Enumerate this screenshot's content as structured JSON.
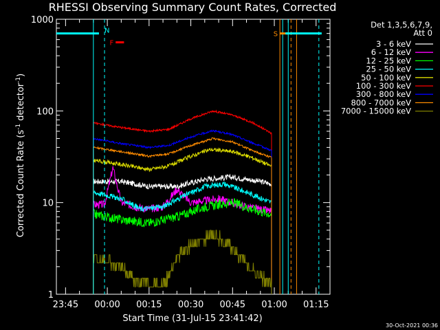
{
  "chart_data": {
    "type": "line",
    "title": "RHESSI Observing Summary Count Rates, Corrected",
    "xlabel": "Start Time (31-Jul-15 23:41:42)",
    "ylabel_main": "Corrected Count Rate (s",
    "ylabel_sup1": "-1",
    "ylabel_mid": " detector",
    "ylabel_sup2": "-1",
    "ylabel_end": ")",
    "y_scale": "log",
    "ylim": [
      1,
      1000
    ],
    "xlim": [
      "23:41:42",
      "01:20"
    ],
    "x_ticks": [
      "23:45",
      "00:00",
      "00:15",
      "00:30",
      "00:45",
      "01:00",
      "01:15"
    ],
    "y_ticks": [
      "1",
      "10",
      "100",
      "1000"
    ],
    "grid": false,
    "legend_position": "top-right",
    "legend_header": [
      "Det 1,3,5,6,7,9,",
      "Att 0"
    ],
    "series": [
      {
        "name": "3 - 6 keV",
        "color": "#ffffff",
        "start": "23:55",
        "end": "00:59",
        "points": [
          [
            "23:55",
            17
          ],
          [
            "00:05",
            17
          ],
          [
            "00:15",
            15
          ],
          [
            "00:25",
            15
          ],
          [
            "00:35",
            18
          ],
          [
            "00:45",
            19
          ],
          [
            "00:55",
            17
          ],
          [
            "00:59",
            16
          ]
        ]
      },
      {
        "name": "6 - 12 keV",
        "color": "#ff00ff",
        "start": "23:55",
        "end": "00:59",
        "points": [
          [
            "23:55",
            9.5
          ],
          [
            "23:59",
            9.5
          ],
          [
            "00:02",
            24
          ],
          [
            "00:05",
            10
          ],
          [
            "00:10",
            9
          ],
          [
            "00:15",
            8.5
          ],
          [
            "00:20",
            9
          ],
          [
            "00:25",
            14
          ],
          [
            "00:30",
            10
          ],
          [
            "00:40",
            11
          ],
          [
            "00:50",
            9
          ],
          [
            "00:59",
            8
          ]
        ]
      },
      {
        "name": "12 - 25 keV",
        "color": "#00ff00",
        "start": "23:55",
        "end": "00:59",
        "points": [
          [
            "23:55",
            7.5
          ],
          [
            "00:05",
            6.5
          ],
          [
            "00:15",
            6
          ],
          [
            "00:25",
            7
          ],
          [
            "00:35",
            9
          ],
          [
            "00:45",
            10
          ],
          [
            "00:55",
            8
          ],
          [
            "00:59",
            7.5
          ]
        ]
      },
      {
        "name": "25 - 50 keV",
        "color": "#00ffff",
        "start": "23:55",
        "end": "00:59",
        "points": [
          [
            "23:55",
            13
          ],
          [
            "00:00",
            12
          ],
          [
            "00:05",
            11
          ],
          [
            "00:12",
            8.5
          ],
          [
            "00:20",
            9
          ],
          [
            "00:28",
            12
          ],
          [
            "00:35",
            15
          ],
          [
            "00:42",
            16
          ],
          [
            "00:50",
            13
          ],
          [
            "00:59",
            10
          ]
        ]
      },
      {
        "name": "50 - 100 keV",
        "color": "#dddd00",
        "start": "23:55",
        "end": "00:59",
        "points": [
          [
            "23:55",
            29
          ],
          [
            "00:05",
            26
          ],
          [
            "00:15",
            23
          ],
          [
            "00:22",
            25
          ],
          [
            "00:30",
            32
          ],
          [
            "00:37",
            38
          ],
          [
            "00:45",
            36
          ],
          [
            "00:52",
            31
          ],
          [
            "00:59",
            25
          ]
        ]
      },
      {
        "name": "100 - 300 keV",
        "color": "#ff0000",
        "start": "23:55",
        "end": "00:59",
        "points": [
          [
            "23:55",
            74
          ],
          [
            "00:05",
            66
          ],
          [
            "00:15",
            60
          ],
          [
            "00:22",
            63
          ],
          [
            "00:30",
            82
          ],
          [
            "00:38",
            100
          ],
          [
            "00:45",
            90
          ],
          [
            "00:52",
            75
          ],
          [
            "00:59",
            57
          ]
        ]
      },
      {
        "name": "300 - 800 keV",
        "color": "#0000ff",
        "start": "23:55",
        "end": "00:59",
        "points": [
          [
            "23:55",
            50
          ],
          [
            "00:05",
            44
          ],
          [
            "00:15",
            40
          ],
          [
            "00:22",
            42
          ],
          [
            "00:30",
            52
          ],
          [
            "00:38",
            61
          ],
          [
            "00:45",
            55
          ],
          [
            "00:52",
            45
          ],
          [
            "00:59",
            37
          ]
        ]
      },
      {
        "name": "800 - 7000 keV",
        "color": "#ff8c00",
        "start": "23:55",
        "end": "00:59",
        "points": [
          [
            "23:55",
            40
          ],
          [
            "00:05",
            36
          ],
          [
            "00:15",
            32
          ],
          [
            "00:22",
            34
          ],
          [
            "00:30",
            42
          ],
          [
            "00:38",
            50
          ],
          [
            "00:45",
            46
          ],
          [
            "00:52",
            37
          ],
          [
            "00:59",
            31
          ]
        ]
      },
      {
        "name": "7000 - 15000 keV",
        "color": "#808000",
        "start": "23:55",
        "end": "00:59",
        "points": [
          [
            "23:55",
            2.5
          ],
          [
            "00:05",
            2
          ],
          [
            "00:10",
            1.4
          ],
          [
            "00:20",
            1.2
          ],
          [
            "00:25",
            2.5
          ],
          [
            "00:30",
            3.5
          ],
          [
            "00:38",
            4.5
          ],
          [
            "00:45",
            3.2
          ],
          [
            "00:52",
            1.8
          ],
          [
            "00:59",
            1.3
          ]
        ]
      }
    ],
    "annotations": [
      {
        "label": "N",
        "color": "#00ffff",
        "value": 700,
        "span": [
          "23:41:42",
          "23:57"
        ]
      },
      {
        "label": "F",
        "color": "#ff0000",
        "value": 560,
        "span": [
          "00:03",
          "00:06"
        ]
      },
      {
        "label": "S",
        "color": "#ff8c00",
        "value": 700,
        "span": [
          "01:02",
          "01:05"
        ]
      }
    ],
    "span_bar": {
      "color": "#00ffff",
      "value": 700,
      "span": [
        "01:04",
        "01:17"
      ]
    },
    "markers": [
      {
        "time": "23:55",
        "color": "#00ffff",
        "style": "solid"
      },
      {
        "time": "23:59",
        "color": "#00ffff",
        "style": "dashed"
      },
      {
        "time": "01:02",
        "color": "#ff8c00",
        "style": "solid"
      },
      {
        "time": "01:03",
        "color": "#00ffff",
        "style": "solid"
      },
      {
        "time": "01:05",
        "color": "#00ffff",
        "style": "solid"
      },
      {
        "time": "01:06",
        "color": "#ff8c00",
        "style": "dashed"
      },
      {
        "time": "01:08",
        "color": "#ff8c00",
        "style": "solid"
      },
      {
        "time": "01:16",
        "color": "#00ffff",
        "style": "dashed"
      }
    ]
  },
  "footer": {
    "timestamp": "30-Oct-2021 00:36"
  }
}
